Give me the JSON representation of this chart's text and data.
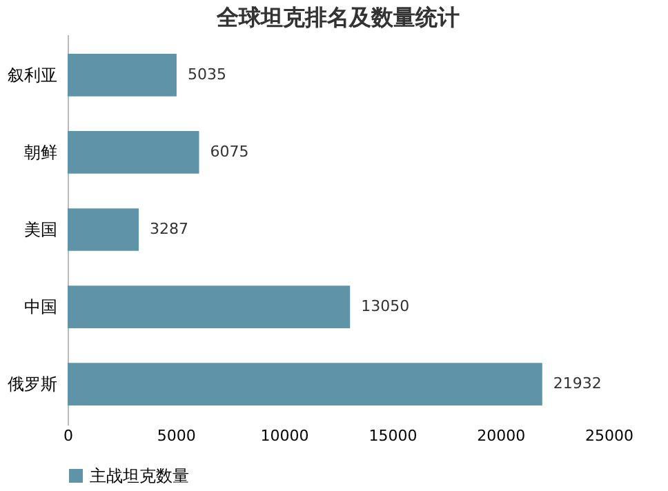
{
  "chart_data": {
    "type": "bar",
    "orientation": "horizontal",
    "title": "全球坦克排名及数量统计",
    "categories": [
      "叙利亚",
      "朝鲜",
      "美国",
      "中国",
      "俄罗斯"
    ],
    "series": [
      {
        "name": "主战坦克数量",
        "color": "#5f93a8",
        "values": [
          5035,
          6075,
          3287,
          13050,
          21932
        ]
      }
    ],
    "xlim": [
      0,
      25000
    ],
    "xticks": [
      0,
      5000,
      10000,
      15000,
      20000,
      25000
    ],
    "data_labels": true,
    "legend": "bottom",
    "grid": false
  }
}
